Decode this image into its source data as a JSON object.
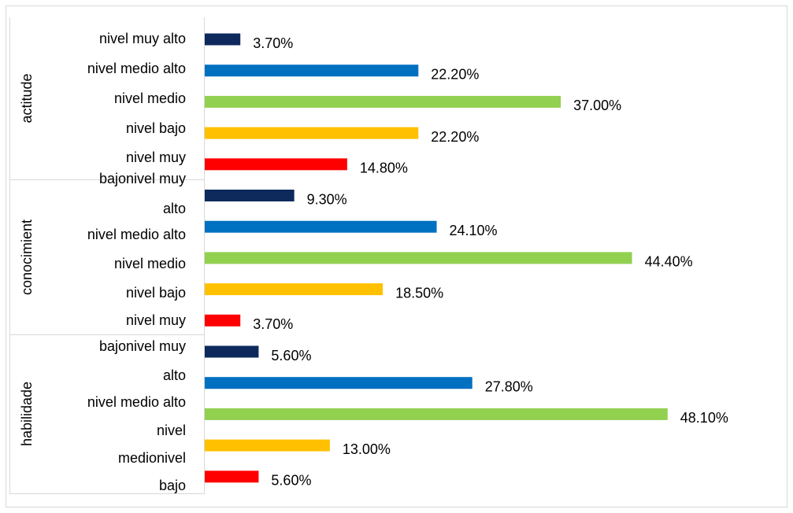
{
  "chart_data": {
    "type": "bar",
    "orientation": "horizontal",
    "colors": [
      "#0e2a5c",
      "#0070c0",
      "#92d050",
      "#ffc000",
      "#ff0000"
    ],
    "category_labels": [
      "nivel muy alto",
      "nivel medio alto",
      "nivel medio",
      "nivel bajo",
      "nivel muy",
      "bajonivel muy",
      "alto",
      "nivel medio alto",
      "nivel medio",
      "nivel bajo",
      "nivel muy",
      "bajonivel muy",
      "alto",
      "nivel medio alto",
      "nivel",
      "medionivel",
      "bajo"
    ],
    "groups": [
      {
        "name": "actitude",
        "values": [
          3.7,
          22.2,
          37.0,
          22.2,
          14.8
        ],
        "value_labels": [
          "3.70%",
          "22.20%",
          "37.00%",
          "22.20%",
          "14.80%"
        ]
      },
      {
        "name": "conocimient",
        "values": [
          9.3,
          24.1,
          44.4,
          18.5,
          3.7
        ],
        "value_labels": [
          "9.30%",
          "24.10%",
          "44.40%",
          "18.50%",
          "3.70%"
        ]
      },
      {
        "name": "habilidade",
        "values": [
          5.6,
          27.8,
          48.1,
          13.0,
          5.6
        ],
        "value_labels": [
          "5.60%",
          "27.80%",
          "48.10%",
          "13.00%",
          "5.60%"
        ]
      }
    ]
  }
}
